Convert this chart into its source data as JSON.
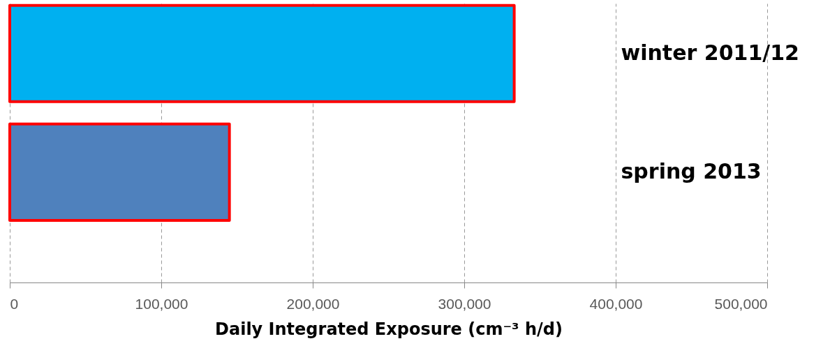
{
  "chart_data": {
    "type": "bar",
    "orientation": "horizontal",
    "categories": [
      "winter 2011/12",
      "spring 2013"
    ],
    "values": [
      333000,
      145000
    ],
    "colors": [
      "#00b0f0",
      "#4f81bd"
    ],
    "xlabel": "Daily Integrated Exposure (cm⁻³ h/d)",
    "xlim": [
      0,
      500000
    ],
    "xticks": [
      0,
      {
        "value": 100000,
        "label": "100,000"
      },
      {
        "value": 200000,
        "label": "200,000"
      },
      {
        "value": 300000,
        "label": "300,000"
      },
      {
        "value": 400000,
        "label": "400,000"
      },
      {
        "value": 500000,
        "label": "500,000"
      }
    ],
    "grid": "x"
  }
}
